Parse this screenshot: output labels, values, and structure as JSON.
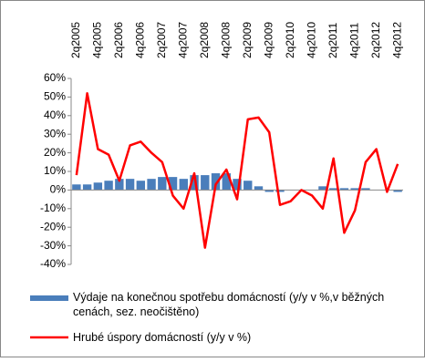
{
  "chart_data": {
    "type": "combo",
    "categories": [
      "2q2005",
      null,
      "4q2005",
      null,
      "2q2006",
      null,
      "4q2006",
      null,
      "2q2007",
      null,
      "4q2007",
      null,
      "2q2008",
      null,
      "4q2008",
      null,
      "2q2009",
      null,
      "4q2009",
      null,
      "2q2010",
      null,
      "4q2010",
      null,
      "2q2011",
      null,
      "4q2011",
      null,
      "2q2012",
      null,
      "4q2012"
    ],
    "series": [
      {
        "name": "Výdaje na konečnou spotřebu domácností (y/y v %,v běžných cenách, sez. neočištěno)",
        "type": "bar",
        "color": "#4a7ebb",
        "values": [
          3,
          3,
          4,
          5,
          6,
          6,
          5,
          6,
          7,
          7,
          6,
          8,
          8,
          9,
          9,
          6,
          5,
          2,
          -1,
          -1,
          0,
          0,
          0,
          2,
          1,
          1,
          1,
          1,
          0,
          0,
          -1
        ]
      },
      {
        "name": "Hrubé úspory domácností (y/y v %)",
        "type": "line",
        "color": "#ff0000",
        "values": [
          8,
          52,
          22,
          19,
          5,
          24,
          26,
          20,
          15,
          -3,
          -10,
          9,
          -31,
          3,
          11,
          -5,
          38,
          39,
          31,
          -8,
          -6,
          0,
          -3,
          -10,
          17,
          -23,
          -11,
          15,
          22,
          -1,
          14
        ]
      }
    ],
    "ylim": [
      -40,
      60
    ],
    "yticks": [
      {
        "value": -40,
        "label": "-40%"
      },
      {
        "value": -30,
        "label": "-30%"
      },
      {
        "value": -20,
        "label": "-20%"
      },
      {
        "value": -10,
        "label": "-10%"
      },
      {
        "value": 0,
        "label": "0%"
      },
      {
        "value": 10,
        "label": "10%"
      },
      {
        "value": 20,
        "label": "20%"
      },
      {
        "value": 30,
        "label": "30%"
      },
      {
        "value": 40,
        "label": "40%"
      },
      {
        "value": 50,
        "label": "50%"
      },
      {
        "value": 60,
        "label": "60%"
      }
    ],
    "grid": false
  }
}
